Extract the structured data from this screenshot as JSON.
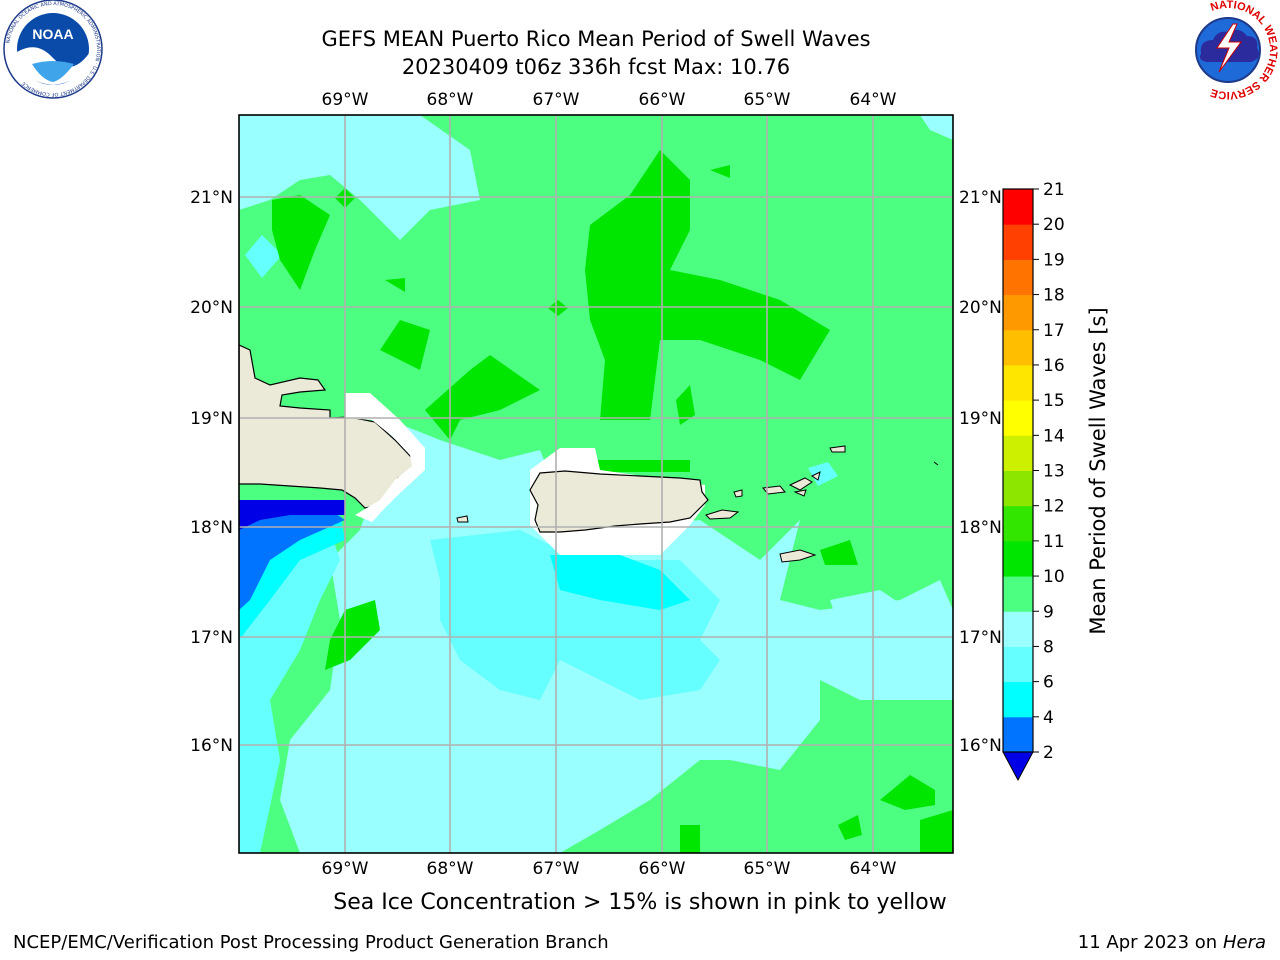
{
  "title": {
    "line1": "GEFS MEAN Puerto Rico Mean Period of Swell Waves",
    "line2": "20230409 t06z 336h fcst   Max: 10.76"
  },
  "logos": {
    "noaa_text": "NOAA",
    "noaa_ring": "NATIONAL OCEANIC AND ATMOSPHERIC ADMINISTRATION · U.S. DEPARTMENT OF COMMERCE",
    "nws_ring": "NATIONAL WEATHER SERVICE"
  },
  "map": {
    "lon_labels": [
      "69°W",
      "68°W",
      "67°W",
      "66°W",
      "65°W",
      "64°W"
    ],
    "lat_labels": [
      "21°N",
      "20°N",
      "19°N",
      "18°N",
      "17°N",
      "16°N"
    ]
  },
  "colorbar": {
    "label": "Mean Period of Swell Waves [s]",
    "ticks": [
      "2",
      "4",
      "6",
      "8",
      "9",
      "10",
      "11",
      "12",
      "13",
      "14",
      "15",
      "16",
      "17",
      "18",
      "19",
      "20",
      "21"
    ],
    "colors": [
      "#0000e6",
      "#0073ff",
      "#00ffff",
      "#66ffff",
      "#99ffff",
      "#4dff80",
      "#00e600",
      "#33e600",
      "#8ce600",
      "#ccf000",
      "#ffff00",
      "#ffe600",
      "#ffbf00",
      "#ff9900",
      "#ff7300",
      "#ff4000",
      "#ff0000"
    ]
  },
  "ice_note": "Sea Ice Concentration > 15% is shown in pink to yellow",
  "footer": {
    "left": "NCEP/EMC/Verification Post Processing Product Generation Branch",
    "date": "11 Apr 2023 on ",
    "machine": "Hera"
  }
}
